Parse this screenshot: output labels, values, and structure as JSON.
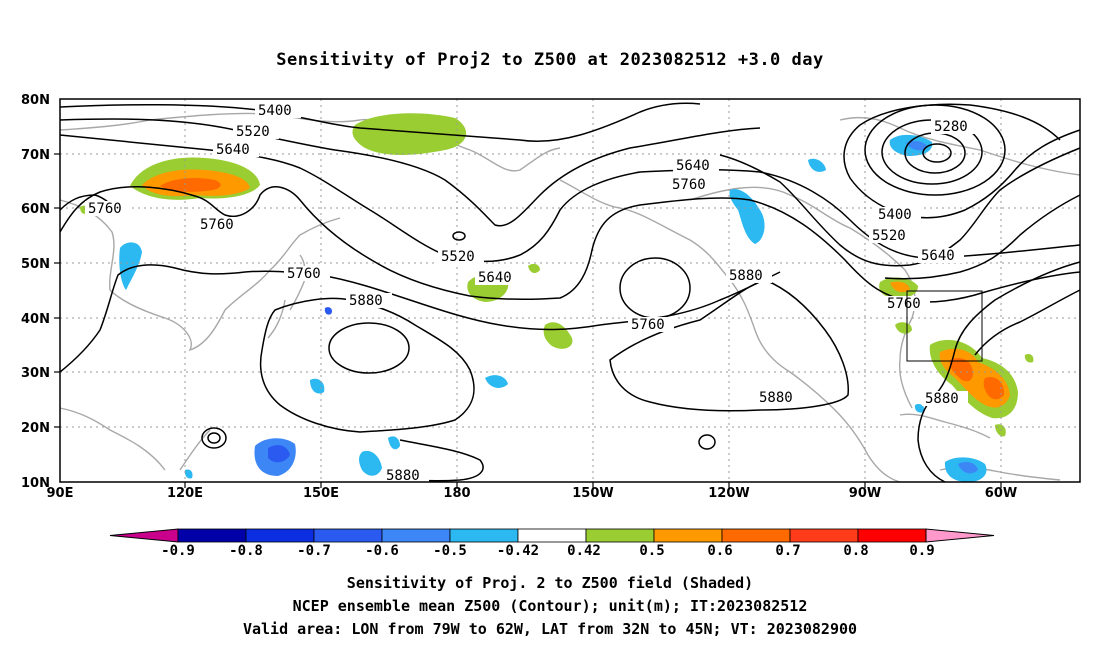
{
  "title": "Sensitivity of Proj2 to Z500 at 2023082512 +3.0 day",
  "map": {
    "lat_ticks": [
      "80N",
      "70N",
      "60N",
      "50N",
      "40N",
      "30N",
      "20N",
      "10N"
    ],
    "lon_ticks": [
      "90E",
      "120E",
      "150E",
      "180",
      "150W",
      "120W",
      "90W",
      "60W"
    ],
    "contour_labels": [
      "5400",
      "5520",
      "5640",
      "5760",
      "5760",
      "5280",
      "5640",
      "5760",
      "5400",
      "5520",
      "5640",
      "5760",
      "5520",
      "5640",
      "5760",
      "5880",
      "5760",
      "5880",
      "5880",
      "5880",
      "5880"
    ],
    "valid_box": {
      "lon_from": "79W",
      "lon_to": "62W",
      "lat_from": "32N",
      "lat_to": "45N"
    }
  },
  "colorbar": {
    "labels": [
      "-0.9",
      "-0.8",
      "-0.7",
      "-0.6",
      "-0.5",
      "-0.42",
      "0.42",
      "0.5",
      "0.6",
      "0.7",
      "0.8",
      "0.9"
    ],
    "colors": [
      "#0000a8",
      "#0b2fe0",
      "#2a5af0",
      "#3c86f5",
      "#2cb8f0",
      "#ffffff",
      "#9acd32",
      "#ff9900",
      "#ff6a00",
      "#ff3c1a",
      "#ff0000"
    ],
    "left_arrow_color": "#c8008c",
    "right_arrow_color": "#ff99cc"
  },
  "captions": {
    "line1": "Sensitivity of Proj. 2 to Z500 field (Shaded)",
    "line2": "NCEP ensemble mean Z500 (Contour); unit(m); IT:2023082512",
    "line3": "Valid area: LON from 79W to 62W, LAT from 32N to 45N; VT: 2023082900"
  }
}
